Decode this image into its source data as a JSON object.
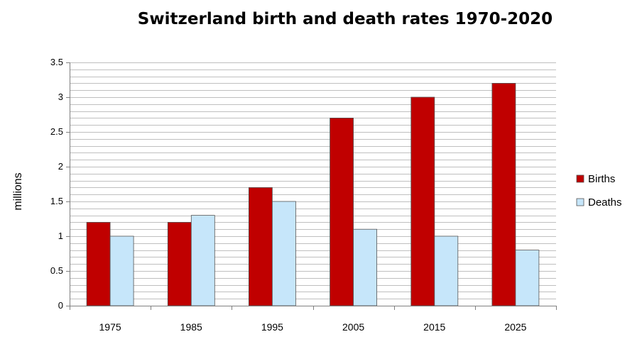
{
  "chart_data": {
    "type": "bar",
    "title": "Switzerland birth and death rates 1970-2020",
    "xlabel": "",
    "ylabel": "millions",
    "categories": [
      "1975",
      "1985",
      "1995",
      "2005",
      "2015",
      "2025"
    ],
    "series": [
      {
        "name": "Births",
        "values": [
          1.2,
          1.2,
          1.7,
          2.7,
          3.0,
          3.2
        ],
        "color": "#c00000"
      },
      {
        "name": "Deaths",
        "values": [
          1.0,
          1.3,
          1.5,
          1.1,
          1.0,
          0.8
        ],
        "color": "#c6e6fa"
      }
    ],
    "ylim": [
      0,
      3.5
    ],
    "yticks": [
      "0",
      "0.5",
      "1",
      "1.5",
      "2",
      "2.5",
      "3",
      "3.5"
    ],
    "minor_grid_step": 0.1,
    "grid": true,
    "legend_position": "right"
  }
}
